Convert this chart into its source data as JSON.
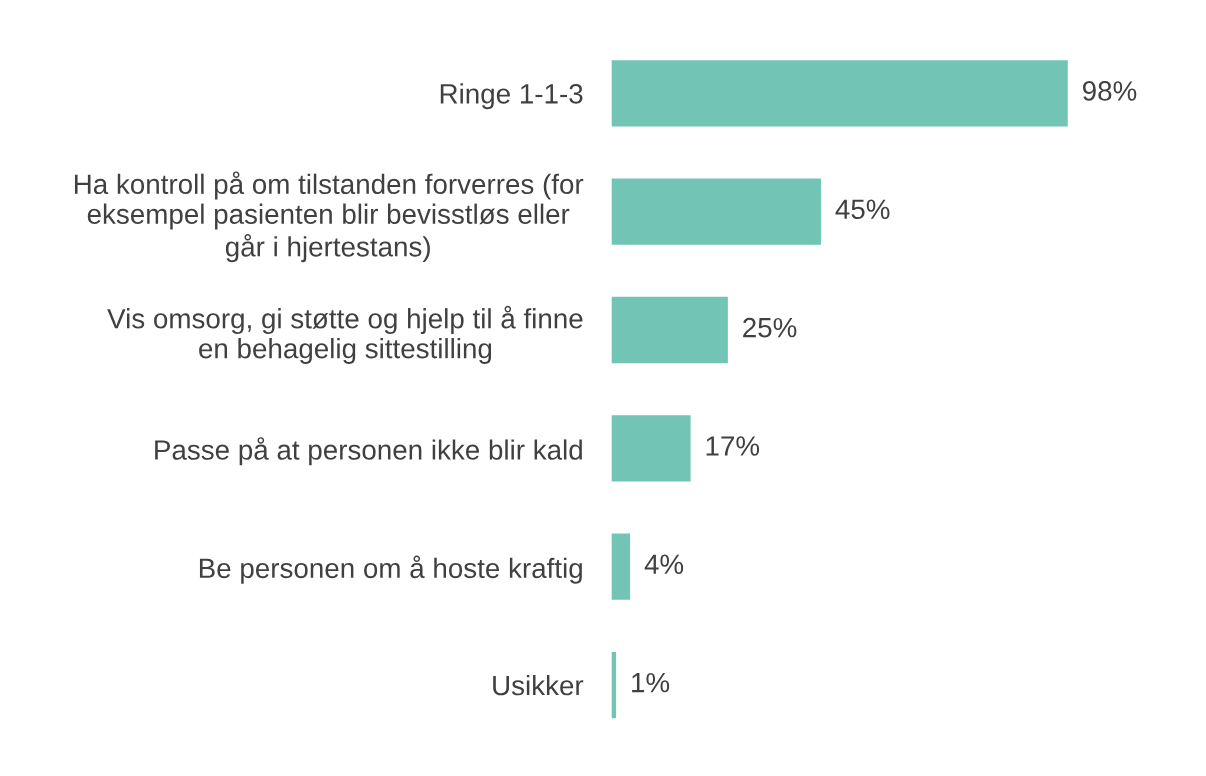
{
  "chart_data": {
    "type": "bar",
    "orientation": "horizontal",
    "categories": [
      "Ringe 1-1-3",
      "Ha kontroll på om tilstanden forverres (for\neksempel pasienten blir bevisstløs eller\ngår i hjertestans)",
      "Vis omsorg, gi støtte og hjelp til å finne\nen behagelig sittestilling",
      "Passe på at personen ikke blir kald",
      "Be personen om å hoste kraftig",
      "Usikker"
    ],
    "values": [
      98,
      45,
      25,
      17,
      4,
      1
    ],
    "value_labels": [
      "98%",
      "45%",
      "25%",
      "17%",
      "4%",
      "1%"
    ],
    "color": "#72c5b4",
    "grid": false,
    "legend": false
  }
}
